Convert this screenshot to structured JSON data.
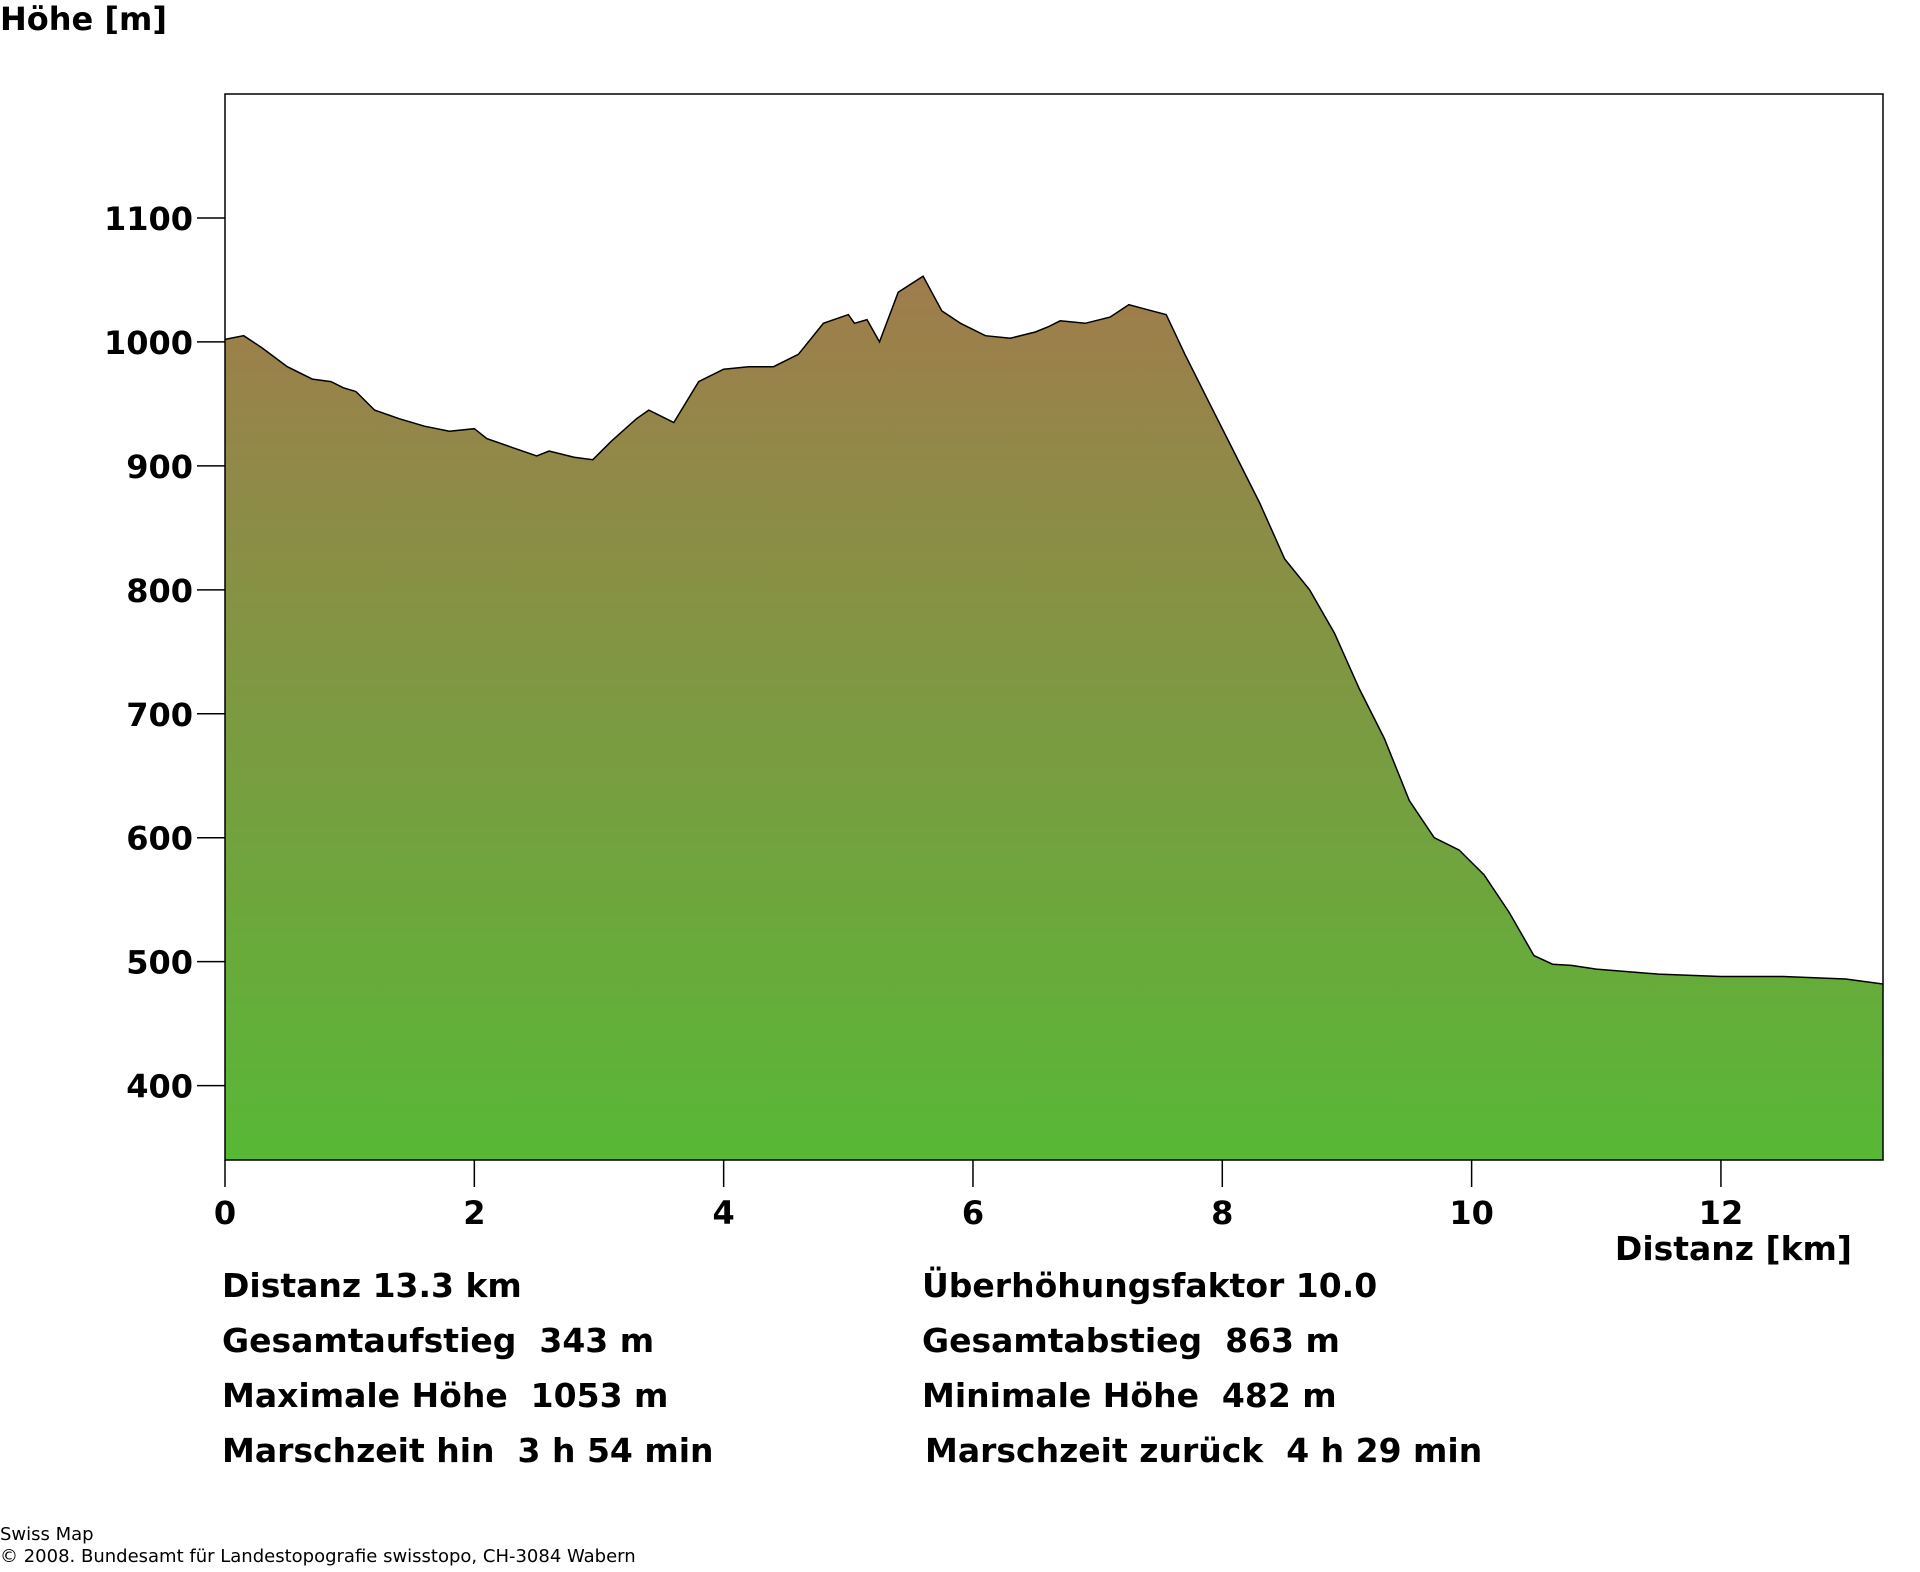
{
  "chart_data": {
    "type": "area",
    "ylabel": "Höhe [m]",
    "xlabel": "Distanz [km]",
    "xlim": [
      0,
      13.3
    ],
    "ylim": [
      340,
      1200
    ],
    "xticks": [
      0,
      2,
      4,
      6,
      8,
      10,
      12
    ],
    "yticks": [
      400,
      500,
      600,
      700,
      800,
      900,
      1000,
      1100
    ],
    "grid": false,
    "fill_gradient": {
      "top": "#a07c4c",
      "bottom": "#58b836"
    },
    "profile_x": [
      0,
      0.15,
      0.3,
      0.5,
      0.7,
      0.85,
      0.95,
      1.05,
      1.2,
      1.4,
      1.6,
      1.8,
      2.0,
      2.1,
      2.3,
      2.5,
      2.6,
      2.8,
      2.95,
      3.1,
      3.3,
      3.4,
      3.5,
      3.6,
      3.8,
      4.0,
      4.2,
      4.4,
      4.6,
      4.8,
      5.0,
      5.05,
      5.15,
      5.25,
      5.4,
      5.6,
      5.75,
      5.9,
      6.1,
      6.3,
      6.5,
      6.6,
      6.7,
      6.9,
      7.1,
      7.25,
      7.4,
      7.55,
      7.7,
      7.9,
      8.1,
      8.3,
      8.5,
      8.7,
      8.9,
      9.1,
      9.3,
      9.5,
      9.7,
      9.9,
      10.1,
      10.3,
      10.5,
      10.65,
      10.8,
      11.0,
      11.5,
      12.0,
      12.5,
      13.0,
      13.3
    ],
    "profile_y": [
      1002,
      1005,
      995,
      980,
      970,
      968,
      963,
      960,
      945,
      938,
      932,
      928,
      930,
      922,
      915,
      908,
      912,
      907,
      905,
      920,
      938,
      945,
      940,
      935,
      968,
      978,
      980,
      980,
      990,
      1015,
      1022,
      1015,
      1018,
      1000,
      1040,
      1053,
      1025,
      1015,
      1005,
      1003,
      1008,
      1012,
      1017,
      1015,
      1020,
      1030,
      1026,
      1022,
      990,
      950,
      910,
      870,
      825,
      800,
      765,
      720,
      680,
      630,
      600,
      590,
      570,
      540,
      505,
      498,
      497,
      494,
      490,
      488,
      488,
      486,
      482
    ]
  },
  "stats": {
    "distance": "Distanz 13.3 km",
    "exaggeration": "Überhöhungsfaktor 10.0",
    "total_ascent": "Gesamtaufstieg  343 m",
    "total_descent": "Gesamtabstieg  863 m",
    "max_height": "Maximale Höhe  1053 m",
    "min_height": "Minimale Höhe  482 m",
    "time_outbound": "Marschzeit hin  3 h 54 min",
    "time_return": "Marschzeit zurück  4 h 29 min"
  },
  "credits": {
    "line1": "Swiss Map",
    "line2": "© 2008. Bundesamt für Landestopografie swisstopo, CH-3084 Wabern"
  }
}
